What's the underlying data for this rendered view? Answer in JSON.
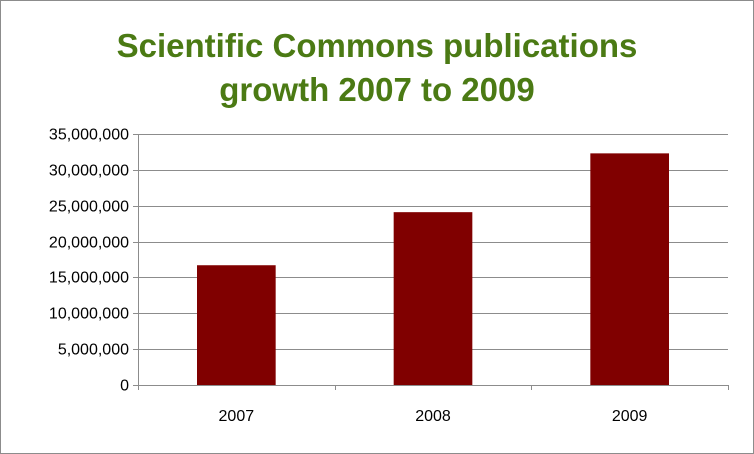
{
  "chart_data": {
    "type": "bar",
    "title_lines": [
      "Scientific Commons publications",
      "growth 2007 to 2009"
    ],
    "xlabel": "",
    "ylabel": "",
    "categories": [
      "2007",
      "2008",
      "2009"
    ],
    "values": [
      16700000,
      24100000,
      32300000
    ],
    "ylim": [
      0,
      35000000
    ],
    "y_ticks": [
      0,
      5000000,
      10000000,
      15000000,
      20000000,
      25000000,
      30000000,
      35000000
    ],
    "y_tick_labels": [
      "0",
      "5,000,000",
      "10,000,000",
      "15,000,000",
      "20,000,000",
      "25,000,000",
      "30,000,000",
      "35,000,000"
    ],
    "grid": true,
    "legend": "none",
    "colors": {
      "bar": "#800000",
      "title": "#4b7a14",
      "grid": "#8c8c8c",
      "axis": "#8c8c8c"
    }
  }
}
